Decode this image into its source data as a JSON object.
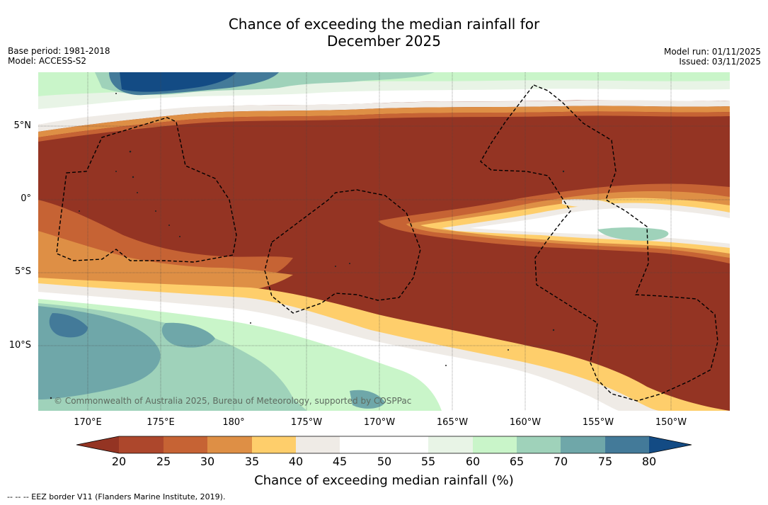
{
  "title_line1": "Chance of exceeding the median rainfall for",
  "title_line2": "December 2025",
  "meta_left": {
    "base_period": "Base period: 1981-2018",
    "model": "Model: ACCESS-S2"
  },
  "meta_right": {
    "model_run": "Model run: 01/11/2025",
    "issued": "Issued: 03/11/2025"
  },
  "copyright": "© Commonwealth of Australia 2025, Bureau of Meteorology, supported by COSPPac",
  "lat_labels": [
    "5°N",
    "0°",
    "5°S",
    "10°S"
  ],
  "lon_labels": [
    "170°E",
    "175°E",
    "180°",
    "175°W",
    "170°W",
    "165°W",
    "160°W",
    "155°W",
    "150°W"
  ],
  "colorbar": {
    "ticks": [
      "20",
      "25",
      "30",
      "35",
      "40",
      "45",
      "50",
      "55",
      "60",
      "65",
      "70",
      "75",
      "80"
    ],
    "colors": {
      "below": "#943423",
      "b20": "#ad472c",
      "b25": "#c66334",
      "b30": "#de8f45",
      "b35": "#fece6b",
      "b40": "#efebe6",
      "b45": "#ffffff",
      "b50": "#ffffff",
      "b55": "#e8f4e6",
      "b60": "#c9f5c9",
      "b65": "#9fd2ba",
      "b70": "#6fa7a9",
      "b75": "#437a99",
      "above": "#134b84"
    },
    "label": "Chance of exceeding median rainfall (%)"
  },
  "footer_legend": "--  --  -- EEZ border V11 (Flanders Marine Institute, 2019)."
}
